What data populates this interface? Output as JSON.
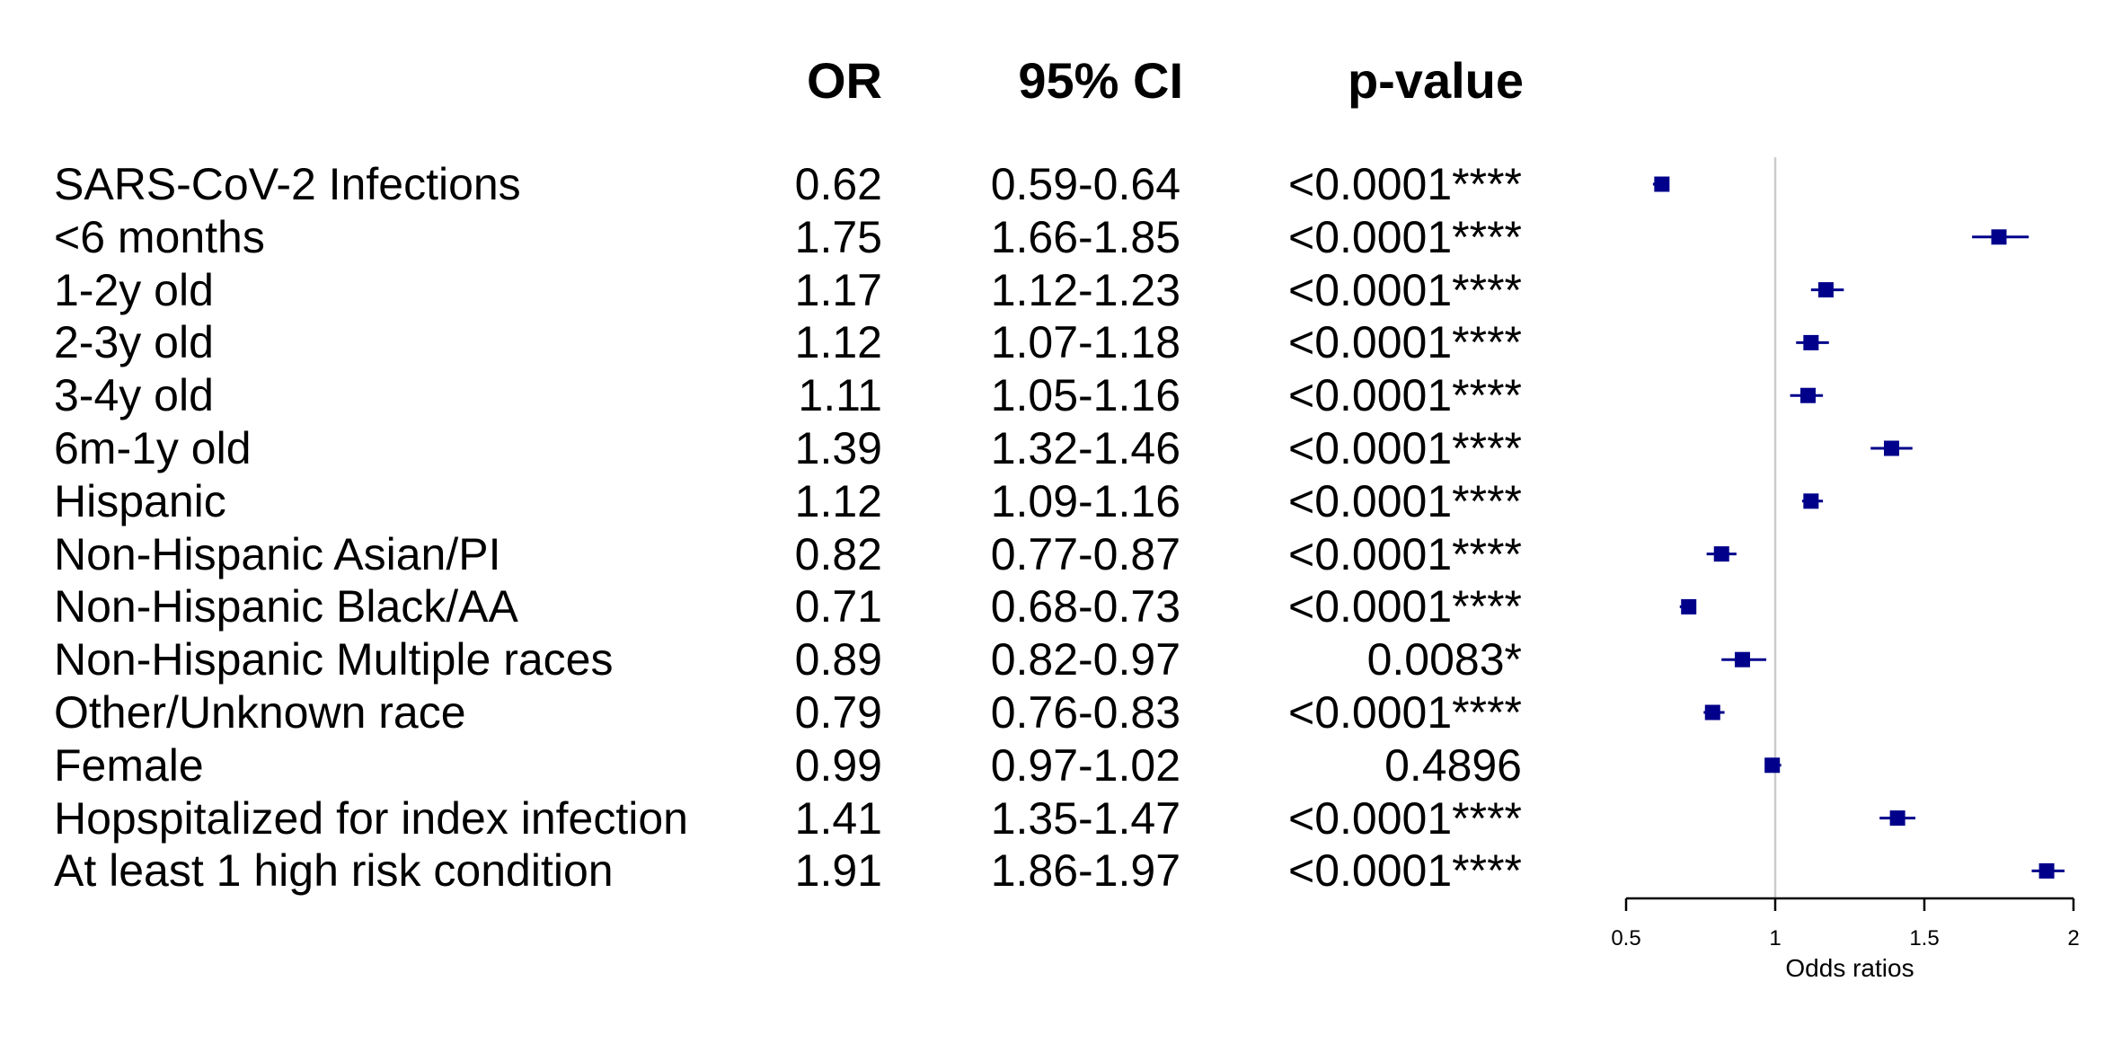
{
  "chart_data": {
    "type": "forest",
    "headers": {
      "or": "OR",
      "ci": "95% CI",
      "p": "p-value"
    },
    "rows": [
      {
        "label": "SARS-CoV-2 Infections",
        "or": 0.62,
        "or_text": "0.62",
        "ci_low": 0.59,
        "ci_high": 0.64,
        "ci_text": "0.59-0.64",
        "p_text": "<0.0001****"
      },
      {
        "label": "<6 months",
        "or": 1.75,
        "or_text": "1.75",
        "ci_low": 1.66,
        "ci_high": 1.85,
        "ci_text": "1.66-1.85",
        "p_text": "<0.0001****"
      },
      {
        "label": "1-2y old",
        "or": 1.17,
        "or_text": "1.17",
        "ci_low": 1.12,
        "ci_high": 1.23,
        "ci_text": "1.12-1.23",
        "p_text": "<0.0001****"
      },
      {
        "label": "2-3y old",
        "or": 1.12,
        "or_text": "1.12",
        "ci_low": 1.07,
        "ci_high": 1.18,
        "ci_text": "1.07-1.18",
        "p_text": "<0.0001****"
      },
      {
        "label": "3-4y old",
        "or": 1.11,
        "or_text": "1.11",
        "ci_low": 1.05,
        "ci_high": 1.16,
        "ci_text": "1.05-1.16",
        "p_text": "<0.0001****"
      },
      {
        "label": "6m-1y old",
        "or": 1.39,
        "or_text": "1.39",
        "ci_low": 1.32,
        "ci_high": 1.46,
        "ci_text": "1.32-1.46",
        "p_text": "<0.0001****"
      },
      {
        "label": "Hispanic",
        "or": 1.12,
        "or_text": "1.12",
        "ci_low": 1.09,
        "ci_high": 1.16,
        "ci_text": "1.09-1.16",
        "p_text": "<0.0001****"
      },
      {
        "label": "Non-Hispanic Asian/PI",
        "or": 0.82,
        "or_text": "0.82",
        "ci_low": 0.77,
        "ci_high": 0.87,
        "ci_text": "0.77-0.87",
        "p_text": "<0.0001****"
      },
      {
        "label": "Non-Hispanic Black/AA",
        "or": 0.71,
        "or_text": "0.71",
        "ci_low": 0.68,
        "ci_high": 0.73,
        "ci_text": "0.68-0.73",
        "p_text": "<0.0001****"
      },
      {
        "label": "Non-Hispanic Multiple races",
        "or": 0.89,
        "or_text": "0.89",
        "ci_low": 0.82,
        "ci_high": 0.97,
        "ci_text": "0.82-0.97",
        "p_text": "0.0083*"
      },
      {
        "label": "Other/Unknown race",
        "or": 0.79,
        "or_text": "0.79",
        "ci_low": 0.76,
        "ci_high": 0.83,
        "ci_text": "0.76-0.83",
        "p_text": "<0.0001****"
      },
      {
        "label": "Female",
        "or": 0.99,
        "or_text": "0.99",
        "ci_low": 0.97,
        "ci_high": 1.02,
        "ci_text": "0.97-1.02",
        "p_text": "0.4896"
      },
      {
        "label": "Hopspitalized for index infection",
        "or": 1.41,
        "or_text": "1.41",
        "ci_low": 1.35,
        "ci_high": 1.47,
        "ci_text": "1.35-1.47",
        "p_text": "<0.0001****"
      },
      {
        "label": "At least 1 high risk condition",
        "or": 1.91,
        "or_text": "1.91",
        "ci_low": 1.86,
        "ci_high": 1.97,
        "ci_text": "1.86-1.97",
        "p_text": "<0.0001****"
      }
    ],
    "x_axis": {
      "label": "Odds ratios",
      "range": [
        0.5,
        2
      ],
      "ticks": [
        0.5,
        1,
        1.5,
        2
      ],
      "tick_labels": [
        "0.5",
        "1",
        "1.5",
        "2"
      ],
      "reference_line": 1
    },
    "colors": {
      "marker": "#00008B",
      "reference_line": "#cccccc",
      "axis": "#000000"
    }
  }
}
